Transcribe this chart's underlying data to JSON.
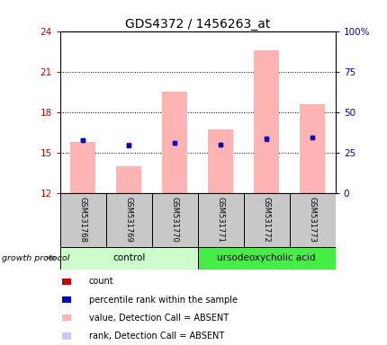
{
  "title": "GDS4372 / 1456263_at",
  "samples": [
    "GSM531768",
    "GSM531769",
    "GSM531770",
    "GSM531771",
    "GSM531772",
    "GSM531773"
  ],
  "ylim_left": [
    12,
    24
  ],
  "ylim_right": [
    0,
    100
  ],
  "yticks_left": [
    12,
    15,
    18,
    21,
    24
  ],
  "yticks_right": [
    0,
    25,
    50,
    75,
    100
  ],
  "ytick_right_labels": [
    "0",
    "25",
    "50",
    "75",
    "100%"
  ],
  "bar_bottom": 12,
  "bar_values_absent": [
    15.8,
    14.0,
    19.5,
    16.7,
    22.6,
    18.6
  ],
  "rank_values_absent": [
    15.9,
    15.5,
    15.7,
    15.55,
    16.0,
    16.1
  ],
  "dot_value": [
    15.9,
    15.6,
    15.7,
    15.6,
    16.0,
    16.1
  ],
  "dot_rank": [
    15.9,
    15.55,
    15.7,
    15.57,
    16.05,
    16.15
  ],
  "bar_color_absent": "#FFB3B3",
  "rank_color_absent": "#C8C8FF",
  "dot_count_color": "#CC0000",
  "dot_rank_color": "#0000CC",
  "control_group_color_light": "#CCFFCC",
  "control_group_color_dark": "#44EE44",
  "sample_box_color": "#C8C8C8",
  "title_fontsize": 10,
  "tick_fontsize": 7.5,
  "bar_width": 0.55,
  "gridline_ticks": [
    15,
    18,
    21
  ],
  "legend_items": [
    {
      "label": "count",
      "color": "#CC0000"
    },
    {
      "label": "percentile rank within the sample",
      "color": "#0000CC"
    },
    {
      "label": "value, Detection Call = ABSENT",
      "color": "#FFB3B3"
    },
    {
      "label": "rank, Detection Call = ABSENT",
      "color": "#C8C8FF"
    }
  ]
}
